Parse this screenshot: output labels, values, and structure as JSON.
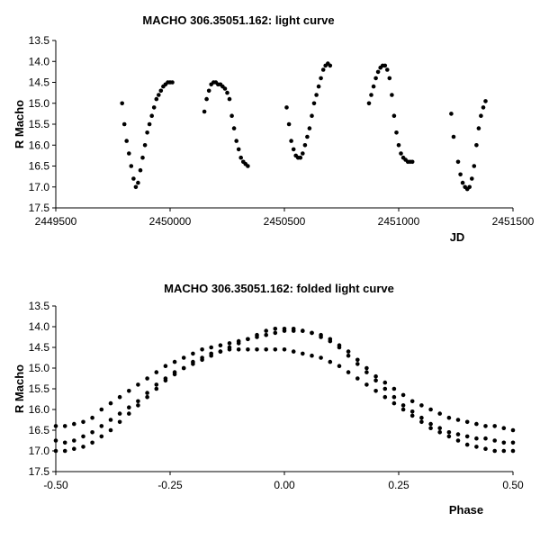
{
  "chart_data": [
    {
      "type": "scatter",
      "title": "MACHO 306.35051.162: light curve",
      "xlabel": "JD",
      "ylabel": "R Macho",
      "xlim": [
        2449500,
        2451500
      ],
      "ylim": [
        13.5,
        17.5
      ],
      "y_inverted": true,
      "x_ticks": [
        "2449500",
        "2450000",
        "2450500",
        "2451000",
        "2451500"
      ],
      "y_ticks": [
        "13.5",
        "14.0",
        "14.5",
        "15.0",
        "15.5",
        "16.0",
        "16.5",
        "17.0",
        "17.5"
      ],
      "grid": false,
      "series": [
        {
          "x": [
            2449790,
            2449800,
            2449810,
            2449820,
            2449830,
            2449840,
            2449850,
            2449860,
            2449870,
            2449880,
            2449890,
            2449900,
            2449910,
            2449920,
            2449930,
            2449940,
            2449950,
            2449960,
            2449970,
            2449980,
            2449990,
            2450000,
            2450010,
            2450150,
            2450160,
            2450170,
            2450180,
            2450190,
            2450200,
            2450210,
            2450220,
            2450230,
            2450240,
            2450250,
            2450260,
            2450270,
            2450280,
            2450290,
            2450300,
            2450310,
            2450320,
            2450330,
            2450340,
            2450510,
            2450520,
            2450530,
            2450540,
            2450550,
            2450560,
            2450570,
            2450580,
            2450590,
            2450600,
            2450610,
            2450620,
            2450630,
            2450640,
            2450650,
            2450660,
            2450670,
            2450680,
            2450690,
            2450700,
            2450870,
            2450880,
            2450890,
            2450900,
            2450910,
            2450920,
            2450930,
            2450940,
            2450950,
            2450960,
            2450970,
            2450980,
            2450990,
            2451000,
            2451010,
            2451020,
            2451030,
            2451040,
            2451050,
            2451060,
            2451230,
            2451240,
            2451260,
            2451270,
            2451280,
            2451290,
            2451300,
            2451310,
            2451320,
            2451330,
            2451340,
            2451350,
            2451360,
            2451370,
            2451380
          ],
          "y": [
            15.0,
            15.5,
            15.9,
            16.2,
            16.5,
            16.8,
            17.0,
            16.9,
            16.6,
            16.3,
            16.0,
            15.7,
            15.5,
            15.3,
            15.1,
            14.9,
            14.8,
            14.7,
            14.6,
            14.55,
            14.5,
            14.5,
            14.5,
            15.2,
            14.9,
            14.7,
            14.55,
            14.5,
            14.5,
            14.55,
            14.55,
            14.6,
            14.65,
            14.75,
            14.9,
            15.3,
            15.6,
            15.9,
            16.1,
            16.3,
            16.4,
            16.45,
            16.5,
            15.1,
            15.5,
            15.9,
            16.1,
            16.25,
            16.3,
            16.3,
            16.2,
            16.0,
            15.8,
            15.6,
            15.3,
            15.0,
            14.8,
            14.6,
            14.4,
            14.2,
            14.1,
            14.05,
            14.1,
            15.0,
            14.8,
            14.6,
            14.4,
            14.25,
            14.15,
            14.1,
            14.1,
            14.2,
            14.4,
            14.8,
            15.3,
            15.7,
            16.0,
            16.2,
            16.3,
            16.35,
            16.4,
            16.4,
            16.4,
            15.25,
            15.8,
            16.4,
            16.7,
            16.9,
            17.0,
            17.05,
            17.0,
            16.8,
            16.5,
            16.0,
            15.6,
            15.3,
            15.1,
            14.95
          ]
        }
      ]
    },
    {
      "type": "scatter",
      "title": "MACHO 306.35051.162: folded light curve",
      "xlabel": "Phase",
      "ylabel": "R Macho",
      "xlim": [
        -0.5,
        0.5
      ],
      "ylim": [
        13.5,
        17.5
      ],
      "y_inverted": true,
      "x_ticks": [
        "-0.50",
        "-0.25",
        "0.00",
        "0.25",
        "0.50"
      ],
      "y_ticks": [
        "13.5",
        "14.0",
        "14.5",
        "15.0",
        "15.5",
        "16.0",
        "16.5",
        "17.0",
        "17.5"
      ],
      "grid": false,
      "series": [
        {
          "x": [
            -0.5,
            -0.48,
            -0.46,
            -0.44,
            -0.42,
            -0.4,
            -0.38,
            -0.36,
            -0.34,
            -0.32,
            -0.3,
            -0.28,
            -0.26,
            -0.24,
            -0.22,
            -0.2,
            -0.18,
            -0.16,
            -0.14,
            -0.12,
            -0.1,
            -0.08,
            -0.06,
            -0.04,
            -0.02,
            0.0,
            0.02,
            0.04,
            0.06,
            0.08,
            0.1,
            0.12,
            0.14,
            0.16,
            0.18,
            0.2,
            0.22,
            0.24,
            0.26,
            0.28,
            0.3,
            0.32,
            0.34,
            0.36,
            0.38,
            0.4,
            0.42,
            0.44,
            0.46,
            0.48,
            0.5
          ],
          "y": [
            16.4,
            16.4,
            16.35,
            16.3,
            16.2,
            16.0,
            15.85,
            15.7,
            15.55,
            15.4,
            15.25,
            15.1,
            14.95,
            14.85,
            14.75,
            14.65,
            14.55,
            14.5,
            14.45,
            14.4,
            14.35,
            14.3,
            14.25,
            14.2,
            14.15,
            14.1,
            14.1,
            14.1,
            14.15,
            14.2,
            14.3,
            14.45,
            14.6,
            14.8,
            15.0,
            15.2,
            15.35,
            15.5,
            15.65,
            15.8,
            15.9,
            16.0,
            16.1,
            16.2,
            16.25,
            16.3,
            16.35,
            16.4,
            16.4,
            16.45,
            16.5
          ]
        },
        {
          "x": [
            -0.5,
            -0.48,
            -0.46,
            -0.44,
            -0.42,
            -0.4,
            -0.38,
            -0.36,
            -0.34,
            -0.32,
            -0.3,
            -0.28,
            -0.26,
            -0.24,
            -0.22,
            -0.2,
            -0.18,
            -0.16,
            -0.14,
            -0.12,
            -0.1,
            -0.08,
            -0.06,
            -0.04,
            -0.02,
            0.0,
            0.02,
            0.04,
            0.06,
            0.08,
            0.1,
            0.12,
            0.14,
            0.16,
            0.18,
            0.2,
            0.22,
            0.24,
            0.26,
            0.28,
            0.3,
            0.32,
            0.34,
            0.36,
            0.38,
            0.4,
            0.42,
            0.44,
            0.46,
            0.48,
            0.5
          ],
          "y": [
            17.0,
            17.0,
            16.95,
            16.9,
            16.8,
            16.65,
            16.5,
            16.3,
            16.1,
            15.9,
            15.7,
            15.5,
            15.3,
            15.15,
            15.0,
            14.85,
            14.75,
            14.65,
            14.6,
            14.55,
            14.55,
            14.55,
            14.55,
            14.55,
            14.55,
            14.55,
            14.6,
            14.65,
            14.7,
            14.75,
            14.85,
            14.95,
            15.1,
            15.25,
            15.4,
            15.55,
            15.7,
            15.85,
            16.0,
            16.15,
            16.3,
            16.45,
            16.55,
            16.65,
            16.75,
            16.85,
            16.9,
            16.95,
            17.0,
            17.0,
            17.0
          ]
        },
        {
          "x": [
            -0.5,
            -0.48,
            -0.46,
            -0.44,
            -0.42,
            -0.4,
            -0.38,
            -0.36,
            -0.34,
            -0.32,
            -0.3,
            -0.28,
            -0.26,
            -0.24,
            -0.22,
            -0.2,
            -0.18,
            -0.16,
            -0.14,
            -0.12,
            -0.1,
            -0.08,
            -0.06,
            -0.04,
            -0.02,
            0.0,
            0.02,
            0.04,
            0.06,
            0.08,
            0.1,
            0.12,
            0.14,
            0.16,
            0.18,
            0.2,
            0.22,
            0.24,
            0.26,
            0.28,
            0.3,
            0.32,
            0.34,
            0.36,
            0.38,
            0.4,
            0.42,
            0.44,
            0.46,
            0.48,
            0.5
          ],
          "y": [
            16.75,
            16.8,
            16.75,
            16.65,
            16.55,
            16.4,
            16.25,
            16.1,
            15.95,
            15.8,
            15.6,
            15.4,
            15.25,
            15.1,
            15.0,
            14.9,
            14.8,
            14.7,
            14.6,
            14.5,
            14.4,
            14.3,
            14.2,
            14.1,
            14.05,
            14.05,
            14.05,
            14.1,
            14.15,
            14.25,
            14.35,
            14.5,
            14.7,
            14.9,
            15.1,
            15.3,
            15.5,
            15.7,
            15.9,
            16.05,
            16.2,
            16.35,
            16.45,
            16.55,
            16.6,
            16.65,
            16.7,
            16.7,
            16.75,
            16.8,
            16.8
          ]
        }
      ]
    }
  ]
}
